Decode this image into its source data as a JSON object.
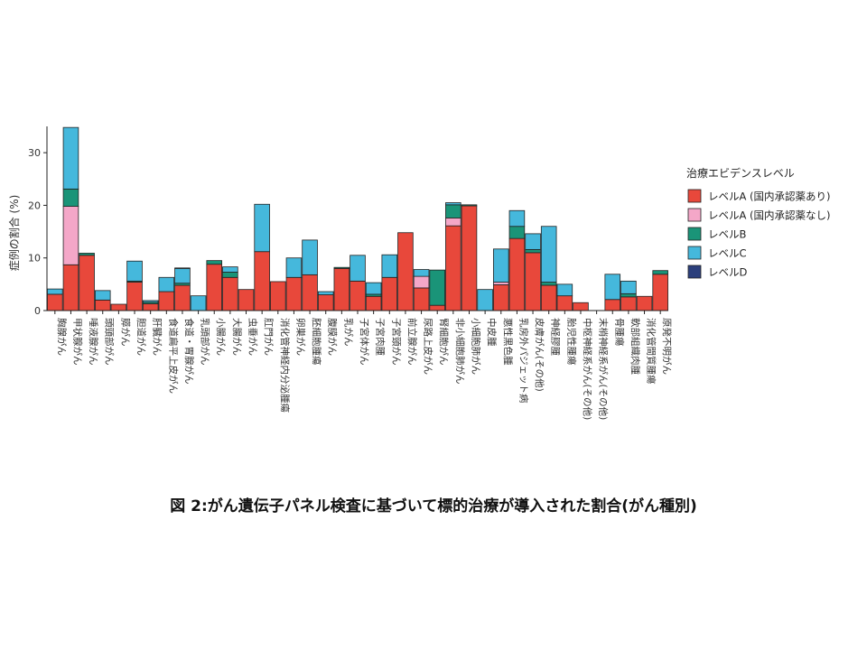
{
  "caption": "図 2:がん遺伝子パネル検査に基づいて標的治療が導入された割合(がん種別)",
  "chart_data": {
    "type": "bar",
    "stacked": true,
    "title": "",
    "xlabel": "",
    "ylabel": "症例の割合 (%)",
    "ylim": [
      0,
      35
    ],
    "yticks": [
      0,
      10,
      20,
      30
    ],
    "grid": false,
    "legend": {
      "title": "治療エビデンスレベル",
      "placement": "right"
    },
    "categories": [
      "胸腺がん",
      "甲状腺がん",
      "唾液腺がん",
      "頭頸部がん",
      "膵がん",
      "胆道がん",
      "肝臓がん",
      "食道扁平上皮がん",
      "食道・胃腺がん",
      "乳頭部がん",
      "小腸がん",
      "大腸がん",
      "虫垂がん",
      "肛門がん",
      "消化管神経内分泌腫瘍",
      "卵巣がん",
      "胚細胞腫瘍",
      "腹膜がん",
      "乳がん",
      "子宮体がん",
      "子宮肉腫",
      "子宮頸がん",
      "前立腺がん",
      "尿路上皮がん",
      "腎細胞がん",
      "非小細胞肺がん",
      "小細胞肺がん",
      "中皮腫",
      "悪性黒色腫",
      "乳房外パジェット病",
      "皮膚がん(その他)",
      "神経膠腫",
      "胎児性腫瘍",
      "中枢神経系がん(その他)",
      "末梢神経系がん(その他)",
      "骨腫瘍",
      "軟部組織肉腫",
      "消化管間質腫瘍",
      "原発不明がん"
    ],
    "series": [
      {
        "name": "レベルA (国内承認薬あり)",
        "color": "#e8483b",
        "values": [
          3.1,
          8.7,
          10.5,
          2.0,
          1.2,
          5.4,
          1.3,
          3.6,
          4.8,
          0,
          8.8,
          6.3,
          4.0,
          11.2,
          5.5,
          6.3,
          6.8,
          3.0,
          8.0,
          5.6,
          2.7,
          6.3,
          14.8,
          4.3,
          1.0,
          16.1,
          19.9,
          0,
          4.9,
          13.7,
          11.0,
          4.8,
          2.8,
          1.5,
          0,
          2.1,
          2.6,
          2.7,
          6.9
        ]
      },
      {
        "name": "レベルA (国内承認薬なし)",
        "color": "#f4a7c8",
        "values": [
          0,
          11.1,
          0,
          0,
          0,
          0,
          0,
          0,
          0,
          0,
          0,
          0,
          0,
          0,
          0,
          0,
          0,
          0,
          0,
          0,
          0,
          0,
          0,
          2.2,
          0,
          1.5,
          0,
          0,
          0.5,
          0,
          0,
          0,
          0,
          0,
          0,
          0,
          0,
          0,
          0
        ]
      },
      {
        "name": "レベルB",
        "color": "#1a9478",
        "values": [
          0,
          3.3,
          0.4,
          0,
          0,
          0.2,
          0.3,
          0,
          0.4,
          0,
          0.7,
          1.0,
          0,
          0,
          0,
          0,
          0,
          0,
          0.2,
          0,
          0.4,
          0,
          0,
          0,
          6.7,
          2.5,
          0.2,
          0,
          0,
          2.3,
          0.6,
          0.6,
          0,
          0,
          0,
          0,
          0.6,
          0,
          0.7
        ]
      },
      {
        "name": "レベルC",
        "color": "#45b8dc",
        "values": [
          1.0,
          11.7,
          0,
          1.8,
          0,
          3.8,
          0.3,
          2.7,
          2.8,
          2.8,
          0,
          1.0,
          0,
          9.0,
          0,
          3.7,
          6.6,
          0.6,
          0,
          4.9,
          2.2,
          4.3,
          0,
          1.3,
          0,
          0.4,
          0,
          4.0,
          6.3,
          3.0,
          3.0,
          10.6,
          2.2,
          0,
          0,
          4.8,
          2.4,
          0,
          0
        ]
      },
      {
        "name": "レベルD",
        "color": "#2b3f7c",
        "values": [
          0,
          0,
          0,
          0,
          0,
          0,
          0,
          0,
          0.1,
          0,
          0,
          0,
          0,
          0,
          0,
          0,
          0,
          0,
          0,
          0,
          0,
          0,
          0,
          0,
          0,
          0,
          0,
          0,
          0,
          0,
          0,
          0,
          0,
          0,
          0,
          0,
          0,
          0,
          0
        ]
      }
    ]
  }
}
